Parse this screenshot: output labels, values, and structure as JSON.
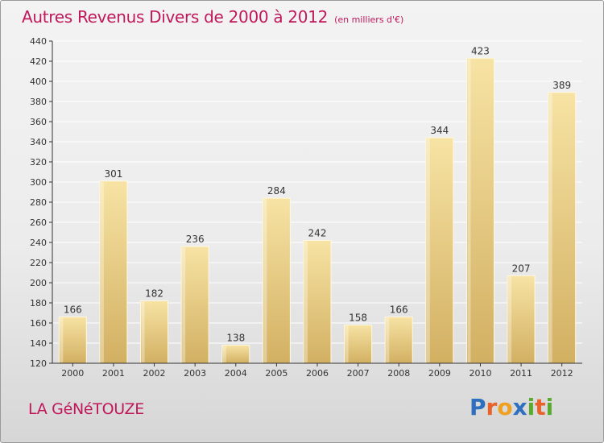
{
  "header": {
    "title": "Autres Revenus Divers de 2000 à 2012",
    "subtitle": "(en milliers d'€)"
  },
  "footer": {
    "commune": "LA GéNéTOUZE",
    "logo_letters": [
      "P",
      "r",
      "o",
      "x",
      "i",
      "t",
      "i"
    ],
    "logo_colors": [
      "#2f6fc0",
      "#e8622a",
      "#f0a020",
      "#2f6fc0",
      "#5aaa2f",
      "#e8622a",
      "#5aaa2f"
    ]
  },
  "colors": {
    "title": "#c0185a",
    "bar_light": "#f7e3a4",
    "bar_dark": "#d9b96a",
    "grid": "#ffffff",
    "axis": "#333333"
  },
  "chart_data": {
    "type": "bar",
    "title": "Autres Revenus Divers de 2000 à 2012",
    "subtitle": "(en milliers d'€)",
    "xlabel": "",
    "ylabel": "",
    "categories": [
      "2000",
      "2001",
      "2002",
      "2003",
      "2004",
      "2005",
      "2006",
      "2007",
      "2008",
      "2009",
      "2010",
      "2011",
      "2012"
    ],
    "values": [
      166,
      301,
      182,
      236,
      138,
      284,
      242,
      158,
      166,
      344,
      423,
      207,
      389
    ],
    "ylim": [
      120,
      440
    ],
    "yticks": [
      120,
      140,
      160,
      180,
      200,
      220,
      240,
      260,
      280,
      300,
      320,
      340,
      360,
      380,
      400,
      420,
      440
    ],
    "grid": true,
    "data_labels": true
  }
}
